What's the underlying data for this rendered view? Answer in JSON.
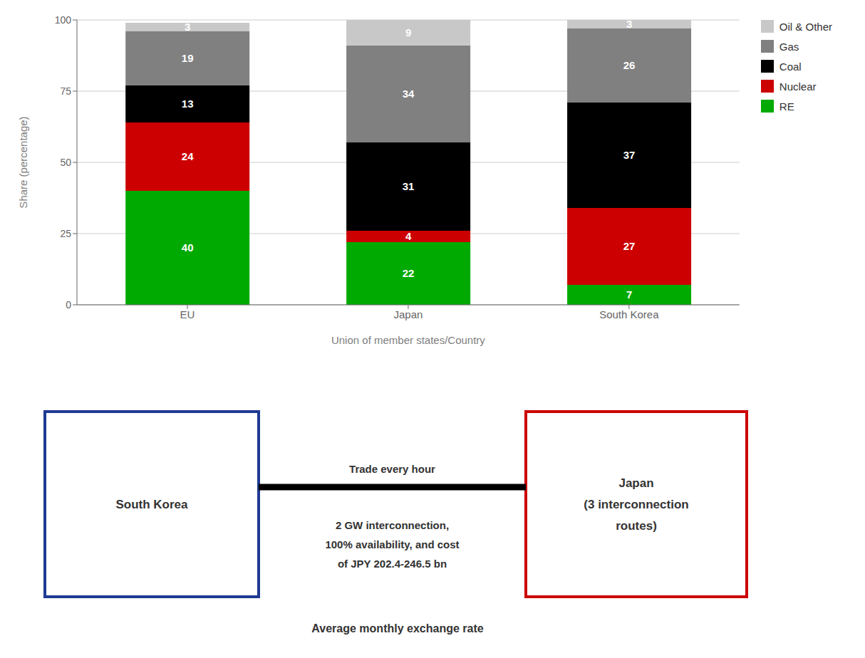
{
  "chart_data": {
    "type": "bar",
    "stacked": true,
    "data_labels": true,
    "grid": true,
    "legend": "right",
    "xlabel": "Union of member states/Country",
    "ylabel": "Share (percentage)",
    "categories": [
      "EU",
      "Japan",
      "South Korea"
    ],
    "series": [
      {
        "name": "RE",
        "color": "#00aa00",
        "values": [
          40,
          22,
          7
        ]
      },
      {
        "name": "Nuclear",
        "color": "#cc0000",
        "values": [
          24,
          4,
          27
        ]
      },
      {
        "name": "Coal",
        "color": "#000000",
        "values": [
          13,
          31,
          37
        ]
      },
      {
        "name": "Gas",
        "color": "#808080",
        "values": [
          19,
          34,
          26
        ]
      },
      {
        "name": "Oil & Other",
        "color": "#c8c8c8",
        "values": [
          3,
          9,
          3
        ]
      }
    ],
    "ylim": [
      0,
      100
    ],
    "yticks": [
      0,
      25,
      50,
      75,
      100
    ],
    "annotations": [
      "South Korea",
      "Japan\n(3 interconnection\nroutes)",
      "Trade every hour",
      "2 GW interconnection,\n100% availability, and cost\nof JPY 202.4-246.5 bn",
      "Average monthly exchange rate"
    ]
  }
}
